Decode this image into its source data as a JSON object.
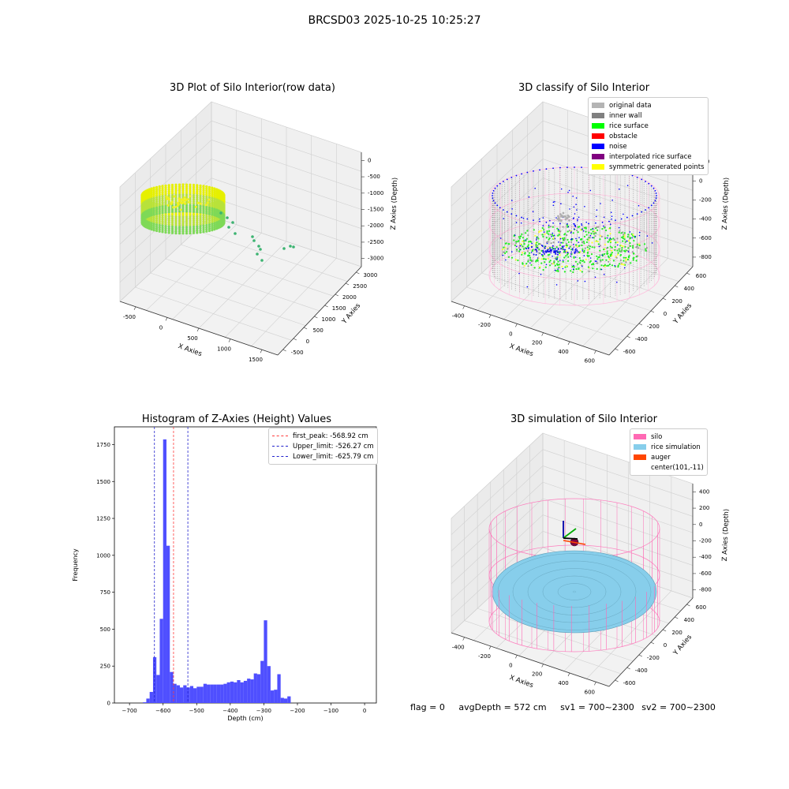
{
  "figure": {
    "suptitle": "BRCSD03 2025-10-25 10:25:27",
    "footer": {
      "flag": "flag = 0",
      "avg": "avgDepth = 572 cm",
      "sv1": "sv1 = 700~2300",
      "sv2": "sv2 = 700~2300"
    }
  },
  "colors": {
    "histogram_bar": "#4f4fff",
    "first_peak": "#ff3b3b",
    "limit_lines": "#2222cc",
    "silo": "#ff69b4",
    "rice_simulation": "#87ceeb",
    "auger": "#ff4500",
    "original": "#b4b4b4",
    "inner_wall": "#808080",
    "rice_surface": "#00ff00",
    "obstacle": "#ff0000",
    "noise": "#0000ff",
    "interpolated": "#800080",
    "symmetric": "#ffff00"
  },
  "chart_data": [
    {
      "type": "scatter",
      "subtype": "3d",
      "title": "3D Plot of Silo Interior(row data)",
      "xlabel": "X Axies",
      "ylabel": "Y Axies",
      "zlabel": "Z Axies (Depth)",
      "x_ticks": [
        "-500",
        "0",
        "500",
        "1000",
        "1500"
      ],
      "y_ticks": [
        "-500",
        "0",
        "500",
        "1000",
        "1500",
        "2000",
        "2500",
        "3000"
      ],
      "z_ticks": [
        "0",
        "-500",
        "-1000",
        "-1500",
        "-2000",
        "-2500",
        "-3000"
      ],
      "grid": true
    },
    {
      "type": "scatter",
      "subtype": "3d",
      "title": "3D classify of Silo Interior",
      "xlabel": "X Axies",
      "ylabel": "Y Axies",
      "zlabel": "Z Axies (Depth)",
      "x_ticks": [
        "-400",
        "-200",
        "0",
        "200",
        "400",
        "600"
      ],
      "y_ticks": [
        "-600",
        "-400",
        "-200",
        "0",
        "200",
        "400",
        "600"
      ],
      "z_ticks": [
        "200",
        "0",
        "-200",
        "-400",
        "-600",
        "-800"
      ],
      "legend": {
        "placement": "top-right",
        "entries": [
          "original data",
          "inner wall",
          "rice surface",
          "obstacle",
          "noise",
          "interpolated rice surface",
          "symmetric generated points"
        ]
      },
      "grid": true
    },
    {
      "type": "bar",
      "subtype": "histogram",
      "title": "Histogram of Z-Axies (Height) Values",
      "xlabel": "Depth (cm)",
      "ylabel": "Frequency",
      "xlim": [
        -745,
        35
      ],
      "ylim": [
        0,
        1870
      ],
      "x_ticks": [
        -700,
        -600,
        -500,
        -400,
        -300,
        -200,
        -100,
        0
      ],
      "y_ticks": [
        0,
        250,
        500,
        750,
        1000,
        1250,
        1500,
        1750
      ],
      "bins": {
        "start": -660,
        "width": 10,
        "counts": [
          5,
          30,
          75,
          310,
          190,
          570,
          1785,
          1065,
          210,
          130,
          120,
          105,
          120,
          105,
          115,
          100,
          110,
          110,
          130,
          125,
          125,
          125,
          125,
          125,
          130,
          140,
          145,
          140,
          155,
          140,
          150,
          165,
          160,
          200,
          195,
          285,
          560,
          250,
          85,
          90,
          195,
          35,
          30,
          45
        ]
      },
      "lines": [
        {
          "label": "first_peak: -568.92 cm",
          "x": -568.92,
          "style": "red-dashed"
        },
        {
          "label": "Upper_limit: -526.27 cm",
          "x": -526.27,
          "style": "blue-dashed"
        },
        {
          "label": "Lower_limit: -625.79 cm",
          "x": -625.79,
          "style": "blue-dashed"
        }
      ],
      "legend": {
        "placement": "top-right"
      },
      "grid": false
    },
    {
      "type": "scatter",
      "subtype": "3d",
      "title": "3D simulation of Silo Interior",
      "xlabel": "X Axies",
      "ylabel": "Y Axies",
      "zlabel": "Z Axies (Depth)",
      "x_ticks": [
        "-400",
        "-200",
        "0",
        "200",
        "400",
        "600"
      ],
      "y_ticks": [
        "-600",
        "-400",
        "-200",
        "0",
        "200",
        "400",
        "600"
      ],
      "z_ticks": [
        "400",
        "200",
        "0",
        "-200",
        "-400",
        "-600",
        "-800"
      ],
      "legend": {
        "placement": "top-right",
        "entries": [
          "silo",
          "rice simulation",
          "auger",
          "center(101,-11)"
        ]
      },
      "grid": true
    }
  ]
}
